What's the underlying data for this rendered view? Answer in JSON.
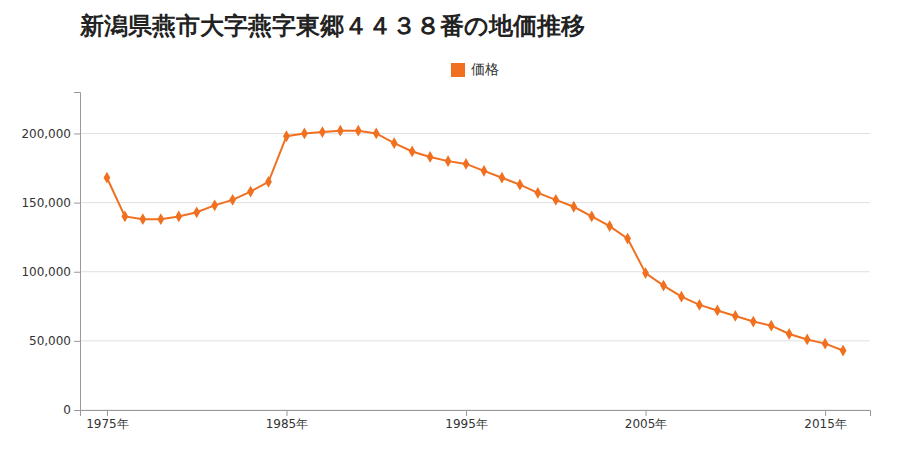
{
  "chart_data": {
    "type": "line",
    "title": "新潟県燕市大字燕字東郷４４３８番の地価推移",
    "x": [
      1975,
      1976,
      1977,
      1978,
      1979,
      1980,
      1981,
      1982,
      1983,
      1984,
      1985,
      1986,
      1987,
      1988,
      1989,
      1990,
      1991,
      1992,
      1993,
      1994,
      1995,
      1996,
      1997,
      1998,
      1999,
      2000,
      2001,
      2002,
      2003,
      2004,
      2005,
      2006,
      2007,
      2008,
      2009,
      2010,
      2011,
      2012,
      2013,
      2014,
      2015,
      2016
    ],
    "series": [
      {
        "name": "価格",
        "color": "#f07020",
        "marker": "diamond",
        "values": [
          168000,
          140000,
          138000,
          138000,
          140000,
          143000,
          148000,
          152000,
          158000,
          165000,
          198000,
          200000,
          201000,
          202000,
          202000,
          200000,
          193000,
          187000,
          183000,
          180000,
          178000,
          173000,
          168000,
          163000,
          157000,
          152000,
          147000,
          140000,
          133000,
          124000,
          99000,
          90000,
          82000,
          76000,
          72000,
          68000,
          64000,
          61000,
          55000,
          51000,
          48000,
          43000
        ]
      }
    ],
    "xlim": [
      1973.5,
      2017.5
    ],
    "xticks": [
      {
        "value": 1975,
        "label": "1975年"
      },
      {
        "value": 1985,
        "label": "1985年"
      },
      {
        "value": 1995,
        "label": "1995年"
      },
      {
        "value": 2005,
        "label": "2005年"
      },
      {
        "value": 2015,
        "label": "2015年"
      }
    ],
    "ylim": [
      0,
      230000
    ],
    "yticks": [
      0,
      {
        "value": 50000,
        "label": "50,000"
      },
      {
        "value": 100000,
        "label": "100,000"
      },
      {
        "value": 150000,
        "label": "150,000"
      },
      {
        "value": 200000,
        "label": "200,000"
      }
    ],
    "grid": true,
    "legend": "top"
  }
}
